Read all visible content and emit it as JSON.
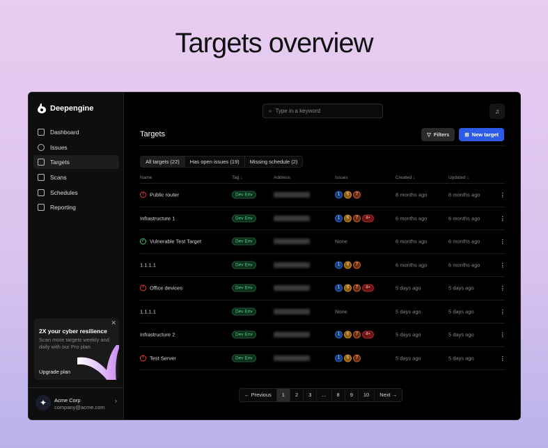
{
  "hero_title": "Targets overview",
  "app": {
    "name": "Deepengine"
  },
  "sidebar": {
    "items": [
      {
        "label": "Dashboard",
        "icon": "chart-icon"
      },
      {
        "label": "Issues",
        "icon": "alert-circle-icon"
      },
      {
        "label": "Targets",
        "icon": "target-icon",
        "active": true
      },
      {
        "label": "Scans",
        "icon": "scan-icon"
      },
      {
        "label": "Schedules",
        "icon": "calendar-icon"
      },
      {
        "label": "Reporting",
        "icon": "report-icon"
      }
    ]
  },
  "promo": {
    "title": "2X your cyber resilience",
    "text": "Scan more targets weekly and daily with our Pro plan.",
    "cta": "Upgrade plan"
  },
  "account": {
    "name": "Acme Corp",
    "email": "company@acme.com"
  },
  "search": {
    "placeholder": "Type in a keyword"
  },
  "page": {
    "title": "Targets",
    "filters": "Filters",
    "new_target": "New target"
  },
  "tabs": [
    "All targets (22)",
    "Has open issues (19)",
    "Missing schedule (2)"
  ],
  "columns": {
    "name": "Name",
    "tag": "Tag ↓",
    "address": "Address",
    "issues": "Issues",
    "created": "Created ↓",
    "updated": "Updated ↓"
  },
  "rows": [
    {
      "name": "Public router",
      "status": "error",
      "tag": "Dev Env",
      "issues": [
        "1",
        "6",
        "7"
      ],
      "created": "8 months ago",
      "updated": "8 months ago"
    },
    {
      "name": "Infrastructure 1",
      "status": "",
      "tag": "Dev Env",
      "issues": [
        "1",
        "6",
        "7",
        "4+"
      ],
      "created": "6 months ago",
      "updated": "6 months ago"
    },
    {
      "name": "Vulnerable Test Target",
      "status": "ok",
      "tag": "Dev Env",
      "issues": [],
      "issues_none": "None",
      "created": "6 months ago",
      "updated": "6 months ago"
    },
    {
      "name": "1.1.1.1",
      "status": "",
      "tag": "Dev Env",
      "issues": [
        "1",
        "6",
        "7"
      ],
      "created": "6 months ago",
      "updated": "6 months ago"
    },
    {
      "name": "Office devices",
      "status": "error",
      "tag": "Dev Env",
      "issues": [
        "1",
        "6",
        "7",
        "4+"
      ],
      "created": "5 days ago",
      "updated": "5 days ago"
    },
    {
      "name": "1.1.1.1",
      "status": "",
      "tag": "Dev Env",
      "issues": [],
      "issues_none": "None",
      "created": "5 days ago",
      "updated": "5 days ago"
    },
    {
      "name": "Infrastructure 2",
      "status": "",
      "tag": "Dev Env",
      "issues": [
        "1",
        "6",
        "7",
        "4+"
      ],
      "created": "5 days ago",
      "updated": "5 days ago"
    },
    {
      "name": "Test Server",
      "status": "error",
      "tag": "Dev Env",
      "issues": [
        "1",
        "6",
        "7"
      ],
      "created": "5 days ago",
      "updated": "5 days ago"
    }
  ],
  "pagination": {
    "previous": "← Previous",
    "pages": [
      "1",
      "2",
      "3",
      "...",
      "8",
      "9",
      "10"
    ],
    "current": "1",
    "next": "Next →"
  },
  "colors": {
    "accent": "#2d5ae6",
    "error": "#ea3a30",
    "ok": "#3bc46a",
    "tag": "#4fd48a"
  }
}
